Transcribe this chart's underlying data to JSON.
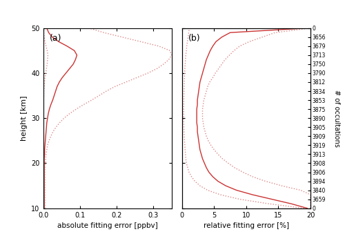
{
  "height_km": [
    10,
    11,
    12,
    13,
    14,
    15,
    16,
    17,
    18,
    19,
    20,
    21,
    22,
    23,
    24,
    25,
    26,
    27,
    28,
    29,
    30,
    31,
    32,
    33,
    34,
    35,
    36,
    37,
    38,
    39,
    40,
    41,
    42,
    43,
    44,
    45,
    46,
    47,
    48,
    49,
    50
  ],
  "abs_median": [
    0.003,
    0.003,
    0.003,
    0.003,
    0.003,
    0.003,
    0.003,
    0.003,
    0.003,
    0.003,
    0.003,
    0.003,
    0.004,
    0.004,
    0.005,
    0.006,
    0.007,
    0.008,
    0.009,
    0.01,
    0.012,
    0.014,
    0.017,
    0.021,
    0.026,
    0.03,
    0.034,
    0.038,
    0.044,
    0.052,
    0.062,
    0.072,
    0.082,
    0.088,
    0.092,
    0.085,
    0.065,
    0.042,
    0.025,
    0.015,
    0.01
  ],
  "abs_upper": [
    0.005,
    0.005,
    0.005,
    0.005,
    0.005,
    0.005,
    0.005,
    0.005,
    0.005,
    0.005,
    0.006,
    0.007,
    0.008,
    0.01,
    0.012,
    0.016,
    0.021,
    0.027,
    0.035,
    0.045,
    0.057,
    0.072,
    0.09,
    0.11,
    0.132,
    0.152,
    0.172,
    0.195,
    0.225,
    0.255,
    0.285,
    0.31,
    0.328,
    0.342,
    0.35,
    0.345,
    0.315,
    0.265,
    0.215,
    0.165,
    0.125
  ],
  "abs_lower": [
    0.0005,
    0.0005,
    0.0005,
    0.0005,
    0.0005,
    0.0005,
    0.0005,
    0.0005,
    0.0005,
    0.0005,
    0.0005,
    0.0005,
    0.0005,
    0.0005,
    0.0008,
    0.001,
    0.001,
    0.001,
    0.001,
    0.001,
    0.001,
    0.001,
    0.001,
    0.001,
    0.001,
    0.002,
    0.002,
    0.003,
    0.004,
    0.005,
    0.007,
    0.009,
    0.011,
    0.012,
    0.013,
    0.011,
    0.008,
    0.005,
    0.003,
    0.002,
    0.001
  ],
  "rel_median": [
    19.5,
    17.0,
    14.0,
    11.0,
    8.5,
    6.8,
    5.6,
    4.8,
    4.2,
    3.8,
    3.5,
    3.2,
    3.0,
    2.8,
    2.7,
    2.6,
    2.5,
    2.4,
    2.4,
    2.3,
    2.3,
    2.3,
    2.3,
    2.4,
    2.4,
    2.5,
    2.6,
    2.7,
    2.8,
    3.0,
    3.2,
    3.4,
    3.6,
    3.8,
    4.1,
    4.4,
    4.8,
    5.3,
    6.2,
    7.5,
    19.5
  ],
  "rel_upper": [
    20.0,
    20.0,
    20.0,
    20.0,
    18.5,
    15.5,
    13.0,
    11.0,
    9.5,
    8.2,
    7.2,
    6.3,
    5.6,
    5.0,
    4.5,
    4.1,
    3.8,
    3.6,
    3.4,
    3.3,
    3.2,
    3.2,
    3.2,
    3.3,
    3.4,
    3.6,
    3.8,
    4.0,
    4.3,
    4.8,
    5.2,
    5.7,
    6.2,
    6.7,
    7.4,
    8.1,
    9.0,
    10.5,
    12.5,
    14.5,
    20.0
  ],
  "rel_lower": [
    19.0,
    13.5,
    9.0,
    6.0,
    4.0,
    2.8,
    2.0,
    1.5,
    1.1,
    0.9,
    0.7,
    0.6,
    0.55,
    0.5,
    0.45,
    0.4,
    0.35,
    0.32,
    0.3,
    0.28,
    0.27,
    0.27,
    0.27,
    0.28,
    0.29,
    0.3,
    0.32,
    0.34,
    0.36,
    0.38,
    0.42,
    0.45,
    0.5,
    0.55,
    0.6,
    0.68,
    0.75,
    0.85,
    0.95,
    1.05,
    1.15
  ],
  "line_color_solid": "#cc3333",
  "line_color_dotted": "#dd8888",
  "background_color": "#ffffff",
  "xlim_abs": [
    0.0,
    0.35
  ],
  "xlim_rel": [
    0.0,
    20.0
  ],
  "ylim": [
    10,
    50
  ],
  "xlabel_abs": "absolute fitting error [ppbv]",
  "xlabel_rel": "relative fitting error [%]",
  "ylabel": "height [km]",
  "ylabel_right": "# of occultations",
  "label_a": "(a)",
  "label_b": "(b)",
  "occ_tick_labels_top_to_bottom": [
    "0",
    "3656",
    "3679",
    "3713",
    "3750",
    "3790",
    "3812",
    "3834",
    "3853",
    "3875",
    "3890",
    "3905",
    "3909",
    "3919",
    "3913",
    "3908",
    "3906",
    "3894",
    "3840",
    "3659",
    "0"
  ]
}
